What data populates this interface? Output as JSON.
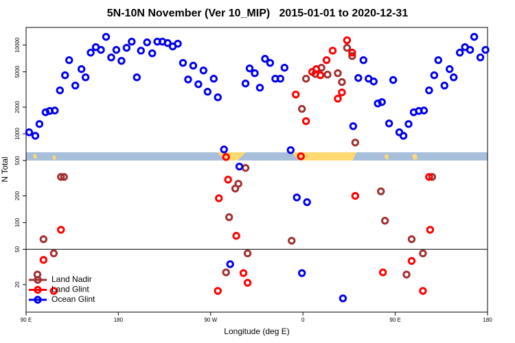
{
  "chart_data": {
    "type": "scatter",
    "title": "5N-10N November (Ver 10_MIP)   2015-01-01 to 2020-12-31",
    "x_label": "Longitude (deg E)",
    "y_label": "N Total",
    "log_y": true,
    "xlim": [
      90,
      540
    ],
    "ylim": [
      9.8,
      15800
    ],
    "xticks": [
      {
        "value": 90,
        "label": "90 E"
      },
      180,
      {
        "value": 270,
        "label": "90 W"
      },
      {
        "value": 360,
        "label": "0"
      },
      {
        "value": 450,
        "label": "90 E"
      },
      {
        "value": 540,
        "label": "180"
      }
    ],
    "yticks": [
      20,
      50,
      100,
      200,
      500,
      1000,
      2000,
      5000,
      10000
    ],
    "reference_line": 50,
    "legend": "lower left",
    "series": [
      {
        "name": "Land Nadir",
        "color": "#a03030",
        "x": [
          101,
          107,
          117,
          124,
          127,
          285,
          288,
          294,
          297,
          304,
          306,
          349,
          359,
          363,
          372,
          378,
          384,
          394,
          398,
          403,
          408,
          411,
          436,
          440,
          466,
          461,
          477,
          486
        ],
        "values": [
          26,
          65,
          45,
          327,
          327,
          27.5,
          115,
          242,
          274,
          413,
          45,
          62.5,
          1910,
          4180,
          4730,
          5560,
          4650,
          4820,
          3830,
          9310,
          7520,
          798,
          225,
          105,
          65,
          26,
          45,
          327
        ]
      },
      {
        "name": "Land Glint",
        "color": "#ff0000",
        "x": [
          107,
          117,
          124,
          278,
          285,
          287,
          295,
          277,
          302,
          306,
          353,
          363,
          358,
          369,
          373,
          377,
          383,
          389,
          394,
          398,
          403,
          408,
          411,
          438,
          466,
          477,
          484,
          483
        ],
        "values": [
          38,
          17,
          83,
          188,
          548,
          305,
          71,
          17,
          27,
          21,
          2770,
          1390,
          558,
          4990,
          5360,
          4570,
          6760,
          8660,
          2490,
          2930,
          11330,
          8220,
          200,
          27.5,
          37,
          17,
          83,
          327
        ]
      },
      {
        "name": "Ocean Glint",
        "color": "#0000ee",
        "x": [
          93,
          99,
          103,
          109,
          113,
          118,
          123,
          128,
          132,
          138,
          144,
          148,
          153,
          158,
          163,
          168,
          173,
          178,
          183,
          188,
          193,
          198,
          202,
          208,
          213,
          218,
          223,
          228,
          233,
          238,
          243,
          248,
          253,
          258,
          263,
          267,
          273,
          277,
          283,
          298,
          304,
          308,
          313,
          318,
          323,
          328,
          333,
          338,
          342,
          348,
          354,
          364,
          359,
          289,
          399,
          409,
          414,
          419,
          424,
          429,
          433,
          437,
          444,
          448,
          454,
          458,
          463,
          468,
          473,
          478,
          483,
          488,
          492,
          498,
          503,
          507,
          513,
          518,
          523,
          527,
          533,
          538
        ],
        "values": [
          1040,
          950,
          1290,
          1750,
          1810,
          1830,
          3090,
          4570,
          6760,
          3500,
          5360,
          4330,
          8220,
          9480,
          8830,
          12380,
          7260,
          8830,
          6640,
          9310,
          10930,
          4330,
          8660,
          10730,
          8080,
          10930,
          10930,
          10550,
          9650,
          10360,
          6300,
          4100,
          5860,
          3620,
          5180,
          2980,
          4180,
          2580,
          667,
          428,
          3690,
          5460,
          4820,
          3310,
          7000,
          6300,
          4180,
          4180,
          5560,
          656,
          192,
          170,
          27,
          34,
          14,
          1220,
          4260,
          6760,
          4180,
          3890,
          2200,
          2280,
          1310,
          4040,
          1040,
          950,
          1290,
          1750,
          1810,
          1830,
          3090,
          4570,
          6760,
          3500,
          5360,
          4330,
          8220,
          9480,
          8830,
          12380,
          7260,
          8830
        ]
      }
    ]
  }
}
